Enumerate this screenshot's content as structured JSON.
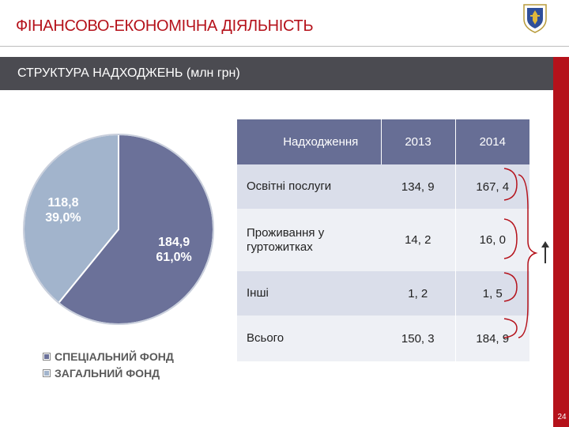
{
  "header": {
    "title": "ФІНАНСОВО-ЕКОНОМІЧНА ДІЯЛЬНІСТЬ",
    "banner": "СТРУКТУРА НАДХОДЖЕНЬ (млн грн)",
    "page_number": "24"
  },
  "colors": {
    "title_red": "#b5121b",
    "banner_gray": "#4b4b51",
    "special_fund": "#6b7199",
    "general_fund": "#a2b4cc"
  },
  "chart_data": {
    "type": "pie",
    "slices": [
      {
        "name": "СПЕЦІАЛЬНИЙ ФОНД",
        "value": 184.9,
        "value_label": "184,9",
        "percent_label": "61,0%",
        "color": "#6b7199"
      },
      {
        "name": "ЗАГАЛЬНИЙ ФОНД",
        "value": 118.8,
        "value_label": "118,8",
        "percent_label": "39,0%",
        "color": "#a2b4cc"
      }
    ],
    "legend_position": "bottom"
  },
  "table": {
    "headers": [
      "Надходження",
      "2013",
      "2014"
    ],
    "rows": [
      {
        "label": "Освітні послуги",
        "y2013": "134, 9",
        "y2014": "167, 4"
      },
      {
        "label": "Проживання у гуртожитках",
        "y2013": "14, 2",
        "y2014": "16, 0"
      },
      {
        "label": "Інші",
        "y2013": "1, 2",
        "y2014": "1, 5"
      },
      {
        "label": "Всього",
        "y2013": "150, 3",
        "y2014": "184, 9"
      }
    ]
  },
  "annotation": {
    "arrow_icon": "up-arrow-icon"
  }
}
